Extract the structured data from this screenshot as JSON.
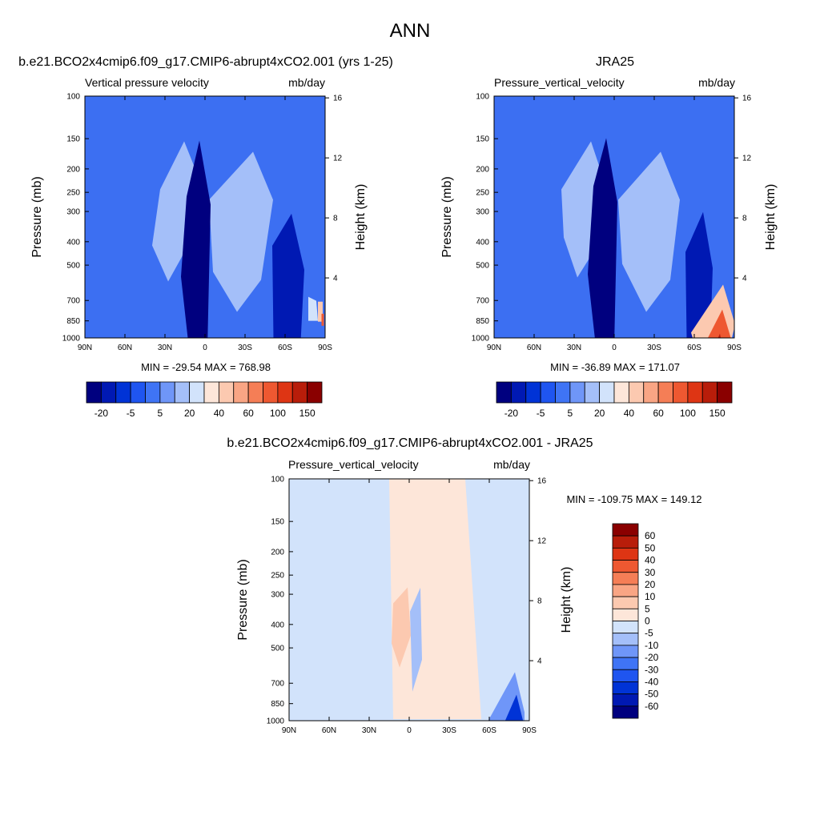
{
  "page": {
    "title": "ANN"
  },
  "panels": [
    {
      "id": "model",
      "title": "b.e21.BCO2x4cmip6.f09_g17.CMIP6-abrupt4xCO2.001 (yrs 1-25)",
      "left_label": "Vertical pressure velocity",
      "right_label": "mb/day",
      "stats": "MIN = -29.54  MAX = 768.98",
      "ylabel": "Pressure (mb)",
      "y2label": "Height (km)"
    },
    {
      "id": "obs",
      "title": "JRA25",
      "left_label": "Pressure_vertical_velocity",
      "right_label": "mb/day",
      "stats": "MIN = -36.89  MAX = 171.07",
      "ylabel": "Pressure (mb)",
      "y2label": "Height (km)"
    },
    {
      "id": "diff",
      "title": "b.e21.BCO2x4cmip6.f09_g17.CMIP6-abrupt4xCO2.001 - JRA25",
      "left_label": "Pressure_vertical_velocity",
      "right_label": "mb/day",
      "stats": "MIN = -109.75  MAX = 149.12",
      "ylabel": "Pressure (mb)",
      "y2label": "Height (km)"
    }
  ],
  "colorbars": {
    "main": {
      "colors": [
        "#00007f",
        "#0019b3",
        "#0033d6",
        "#1f55f0",
        "#3f74f5",
        "#6f96f8",
        "#a4bff9",
        "#d2e3fb",
        "#fde6d9",
        "#fcc9b0",
        "#f9a584",
        "#f57e56",
        "#ee5831",
        "#de3514",
        "#b81d0a",
        "#8a0000"
      ],
      "labels": [
        "-20",
        "-5",
        "5",
        "20",
        "40",
        "60",
        "100",
        "150"
      ]
    },
    "diff": {
      "colors": [
        "#8a0000",
        "#b81d0a",
        "#de3514",
        "#ee5831",
        "#f57e56",
        "#f9a584",
        "#fcc9b0",
        "#fde6d9",
        "#d2e3fb",
        "#a4bff9",
        "#6f96f8",
        "#3f74f5",
        "#1f55f0",
        "#0033d6",
        "#0019b3",
        "#00007f"
      ],
      "labels": [
        "60",
        "50",
        "40",
        "30",
        "20",
        "10",
        "5",
        "0",
        "-5",
        "-10",
        "-20",
        "-30",
        "-40",
        "-50",
        "-60"
      ]
    }
  },
  "chart_data": [
    {
      "type": "heatmap",
      "title": "b.e21.BCO2x4cmip6.f09_g17.CMIP6-abrupt4xCO2.001 (yrs 1-25)",
      "xlabel": "",
      "ylabel": "Pressure (mb)",
      "y2label": "Height (km)",
      "x_ticks": [
        "90N",
        "60N",
        "30N",
        "0",
        "30S",
        "60S",
        "90S"
      ],
      "y_ticks": [
        "100",
        "150",
        "200",
        "250",
        "300",
        "400",
        "500",
        "700",
        "850",
        "1000"
      ],
      "y2_ticks": [
        "16",
        "12",
        "8",
        "4"
      ],
      "y_scale": "log",
      "ylim": [
        1000,
        100
      ],
      "xlim": [
        90,
        -90
      ],
      "units": "mb/day",
      "min": -29.54,
      "max": 768.98
    },
    {
      "type": "heatmap",
      "title": "JRA25",
      "xlabel": "",
      "ylabel": "Pressure (mb)",
      "y2label": "Height (km)",
      "x_ticks": [
        "90N",
        "60N",
        "30N",
        "0",
        "30S",
        "60S",
        "90S"
      ],
      "y_ticks": [
        "100",
        "150",
        "200",
        "250",
        "300",
        "400",
        "500",
        "700",
        "850",
        "1000"
      ],
      "y2_ticks": [
        "16",
        "12",
        "8",
        "4"
      ],
      "y_scale": "log",
      "ylim": [
        1000,
        100
      ],
      "xlim": [
        90,
        -90
      ],
      "units": "mb/day",
      "min": -36.89,
      "max": 171.07
    },
    {
      "type": "heatmap",
      "title": "b.e21.BCO2x4cmip6.f09_g17.CMIP6-abrupt4xCO2.001 - JRA25",
      "xlabel": "",
      "ylabel": "Pressure (mb)",
      "y2label": "Height (km)",
      "x_ticks": [
        "90N",
        "60N",
        "30N",
        "0",
        "30S",
        "60S",
        "90S"
      ],
      "y_ticks": [
        "100",
        "150",
        "200",
        "250",
        "300",
        "400",
        "500",
        "700",
        "850",
        "1000"
      ],
      "y2_ticks": [
        "16",
        "12",
        "8",
        "4"
      ],
      "y_scale": "log",
      "ylim": [
        1000,
        100
      ],
      "xlim": [
        90,
        -90
      ],
      "units": "mb/day",
      "min": -109.75,
      "max": 149.12
    }
  ]
}
